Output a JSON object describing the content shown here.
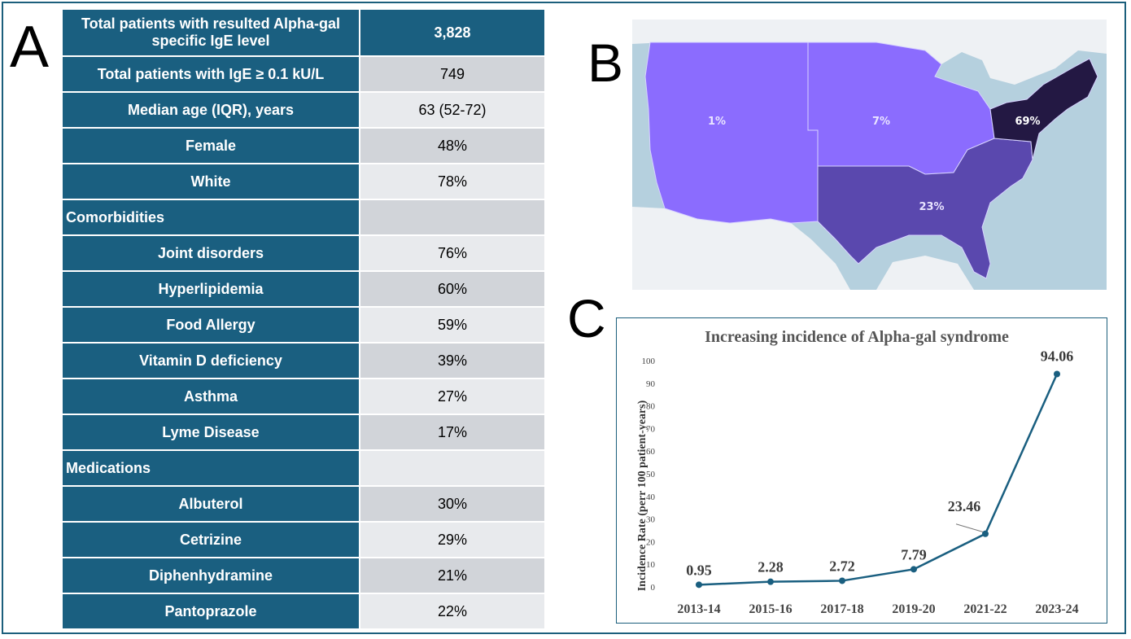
{
  "panels": {
    "a": "A",
    "b": "B",
    "c": "C"
  },
  "table": {
    "header": {
      "label": "Total patients with resulted Alpha-gal specific IgE level",
      "value": "3,828"
    },
    "rows": [
      {
        "label": "Total patients with IgE ≥ 0.1 kU/L",
        "value": "749"
      },
      {
        "label": "Median age (IQR), years",
        "value": "63 (52-72)"
      },
      {
        "label": "Female",
        "value": "48%"
      },
      {
        "label": "White",
        "value": "78%"
      },
      {
        "label": "Comorbidities",
        "value": ""
      },
      {
        "label": "Joint disorders",
        "value": "76%"
      },
      {
        "label": "Hyperlipidemia",
        "value": "60%"
      },
      {
        "label": "Food Allergy",
        "value": "59%"
      },
      {
        "label": "Vitamin D deficiency",
        "value": "39%"
      },
      {
        "label": "Asthma",
        "value": "27%"
      },
      {
        "label": "Lyme Disease",
        "value": "17%"
      },
      {
        "label": "Medications",
        "value": ""
      },
      {
        "label": "Albuterol",
        "value": "30%"
      },
      {
        "label": "Cetrizine",
        "value": "29%"
      },
      {
        "label": "Diphenhydramine",
        "value": "21%"
      },
      {
        "label": "Pantoprazole",
        "value": "22%"
      }
    ]
  },
  "map": {
    "regions": [
      {
        "name": "West",
        "value": "1%",
        "color": "#8b6cfe"
      },
      {
        "name": "Midwest",
        "value": "7%",
        "color": "#8b6cfe"
      },
      {
        "name": "South",
        "value": "23%",
        "color": "#5a48ae"
      },
      {
        "name": "Northeast",
        "value": "69%",
        "color": "#231843"
      }
    ]
  },
  "chart_data": {
    "type": "line",
    "title": "Increasing incidence of Alpha-gal syndrome",
    "xlabel": "",
    "ylabel": "Incidence Rate (perr 100 patient-years)",
    "categories": [
      "2013-14",
      "2015-16",
      "2017-18",
      "2019-20",
      "2021-22",
      "2023-24"
    ],
    "series": [
      {
        "values": [
          0.95,
          2.28,
          2.72,
          7.79,
          23.46,
          94.06
        ]
      }
    ],
    "data_labels": [
      "0.95",
      "2.28",
      "2.72",
      "7.79",
      "23.46",
      "94.06"
    ],
    "yticks": [
      "0",
      "10",
      "20",
      "30",
      "40",
      "50",
      "60",
      "70",
      "80",
      "90",
      "100"
    ],
    "ylim": [
      0,
      100
    ],
    "grid": false,
    "color": "#1a5f80"
  }
}
